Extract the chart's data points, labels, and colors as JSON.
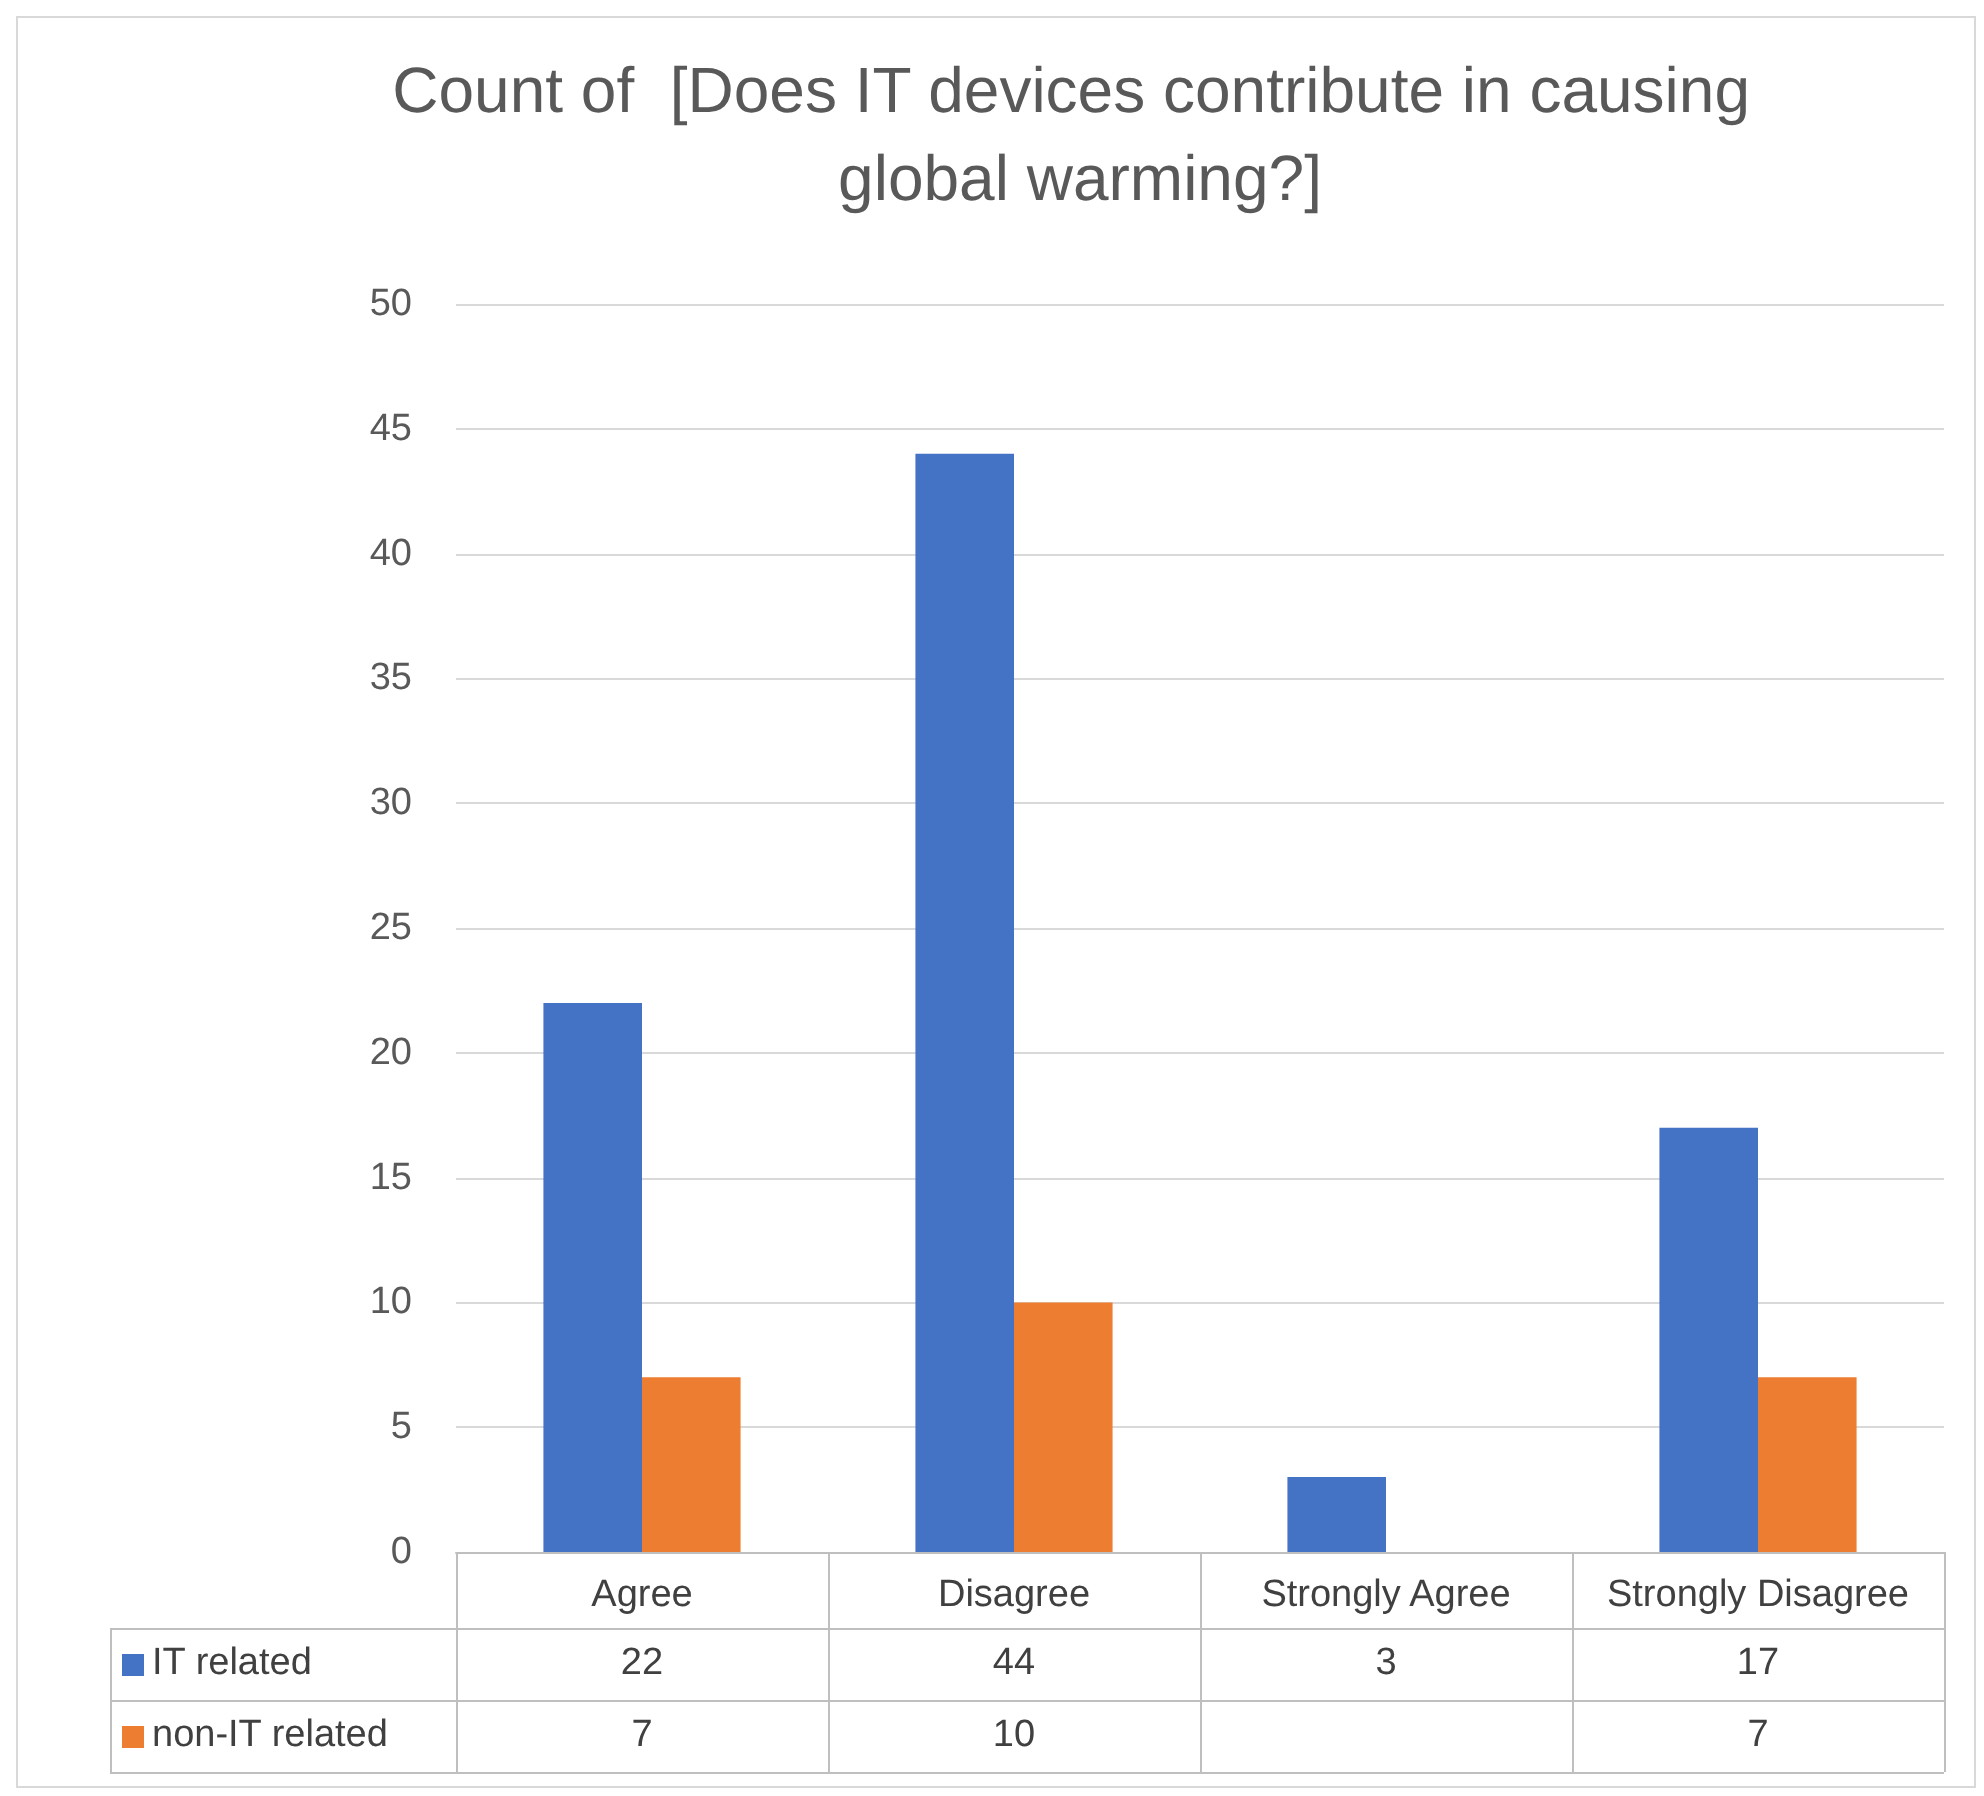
{
  "chart_data": {
    "type": "bar",
    "title": "Count of  [Does IT devices contribute in causing global warming?]",
    "categories": [
      "Agree",
      "Disagree",
      "Strongly Agree",
      "Strongly Disagree"
    ],
    "series": [
      {
        "name": "IT related",
        "color": "#4472c4",
        "values": [
          22,
          44,
          3,
          17
        ]
      },
      {
        "name": "non-IT related",
        "color": "#ed7d31",
        "values": [
          7,
          10,
          null,
          7
        ]
      }
    ],
    "ylim": [
      0,
      50
    ],
    "yticks": [
      0,
      5,
      10,
      15,
      20,
      25,
      30,
      35,
      40,
      45,
      50
    ],
    "grid": "y",
    "legend": "bottom",
    "data_labels": true
  }
}
